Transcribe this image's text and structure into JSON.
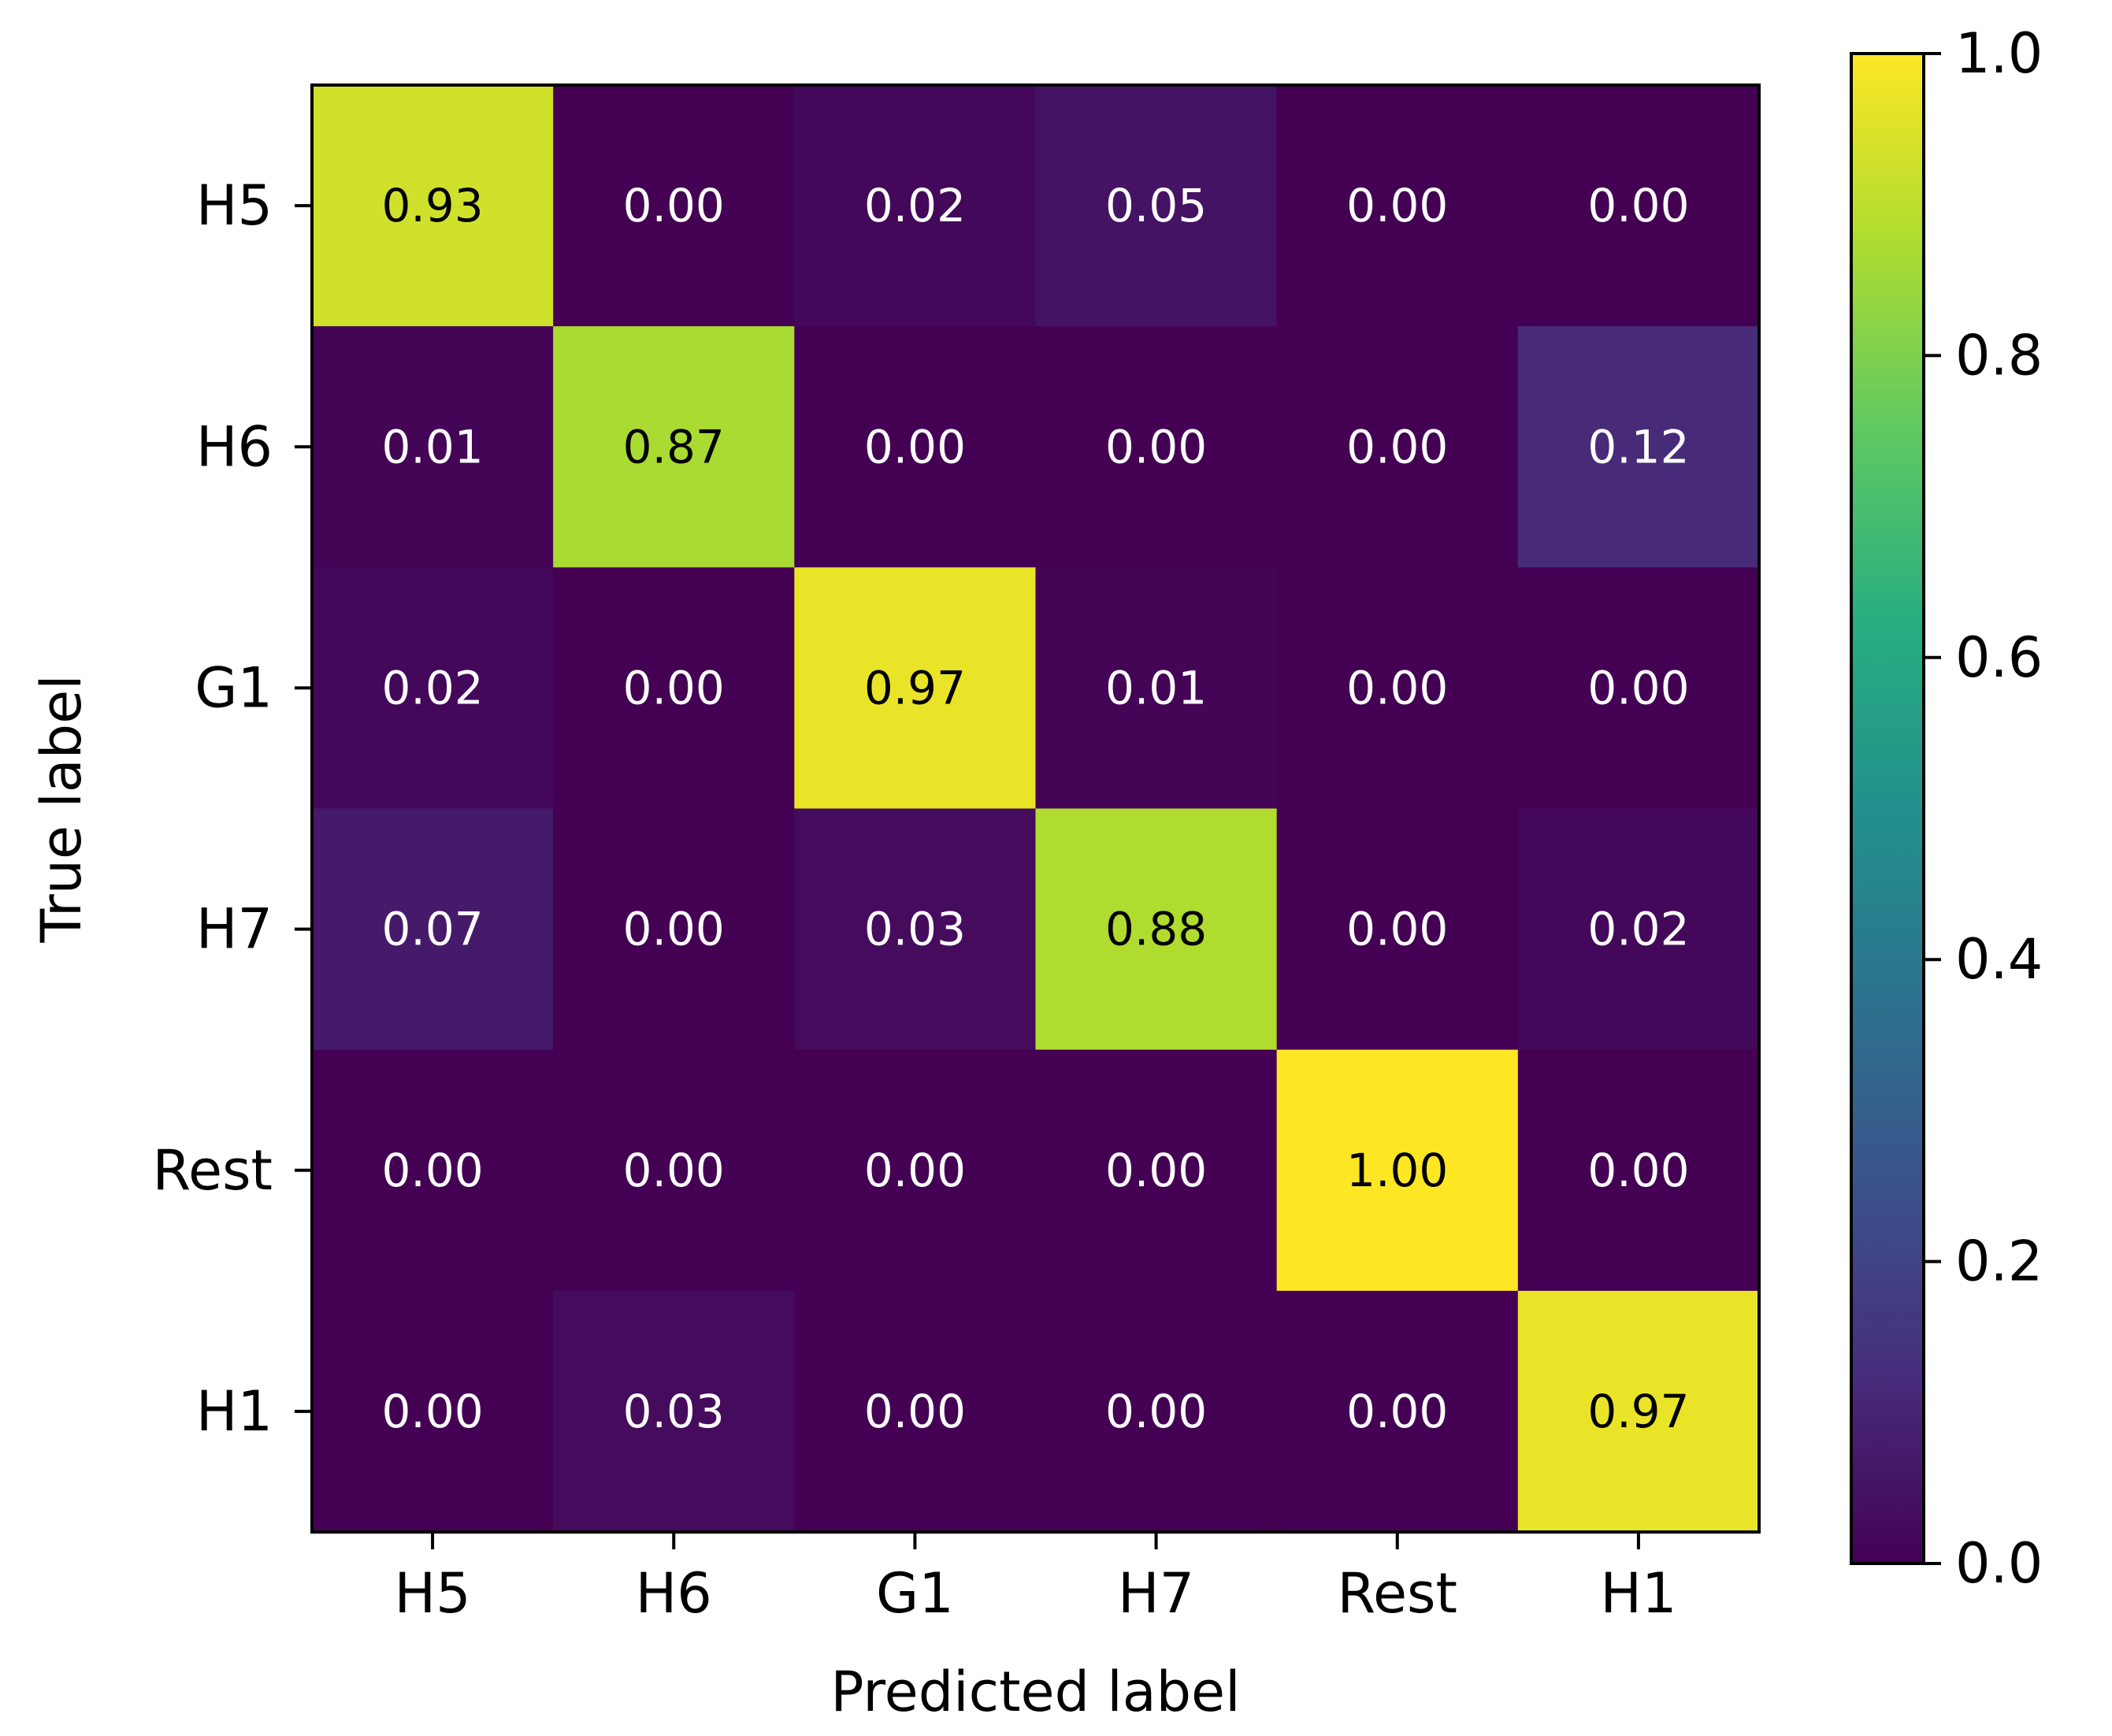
{
  "chart_data": {
    "type": "heatmap",
    "title": "",
    "xlabel": "Predicted label",
    "ylabel": "True label",
    "x_categories": [
      "H5",
      "H6",
      "G1",
      "H7",
      "Rest",
      "H1"
    ],
    "y_categories": [
      "H5",
      "H6",
      "G1",
      "H7",
      "Rest",
      "H1"
    ],
    "values": [
      [
        0.93,
        0.0,
        0.02,
        0.05,
        0.0,
        0.0
      ],
      [
        0.01,
        0.87,
        0.0,
        0.0,
        0.0,
        0.12
      ],
      [
        0.02,
        0.0,
        0.97,
        0.01,
        0.0,
        0.0
      ],
      [
        0.07,
        0.0,
        0.03,
        0.88,
        0.0,
        0.02
      ],
      [
        0.0,
        0.0,
        0.0,
        0.0,
        1.0,
        0.0
      ],
      [
        0.0,
        0.03,
        0.0,
        0.0,
        0.0,
        0.97
      ]
    ],
    "value_format": "0.00",
    "colormap": "viridis",
    "colorbar": {
      "range": [
        0.0,
        1.0
      ],
      "ticks": [
        0.0,
        0.2,
        0.4,
        0.6,
        0.8,
        1.0
      ],
      "tick_labels": [
        "0.0",
        "0.2",
        "0.4",
        "0.6",
        "0.8",
        "1.0"
      ]
    }
  }
}
